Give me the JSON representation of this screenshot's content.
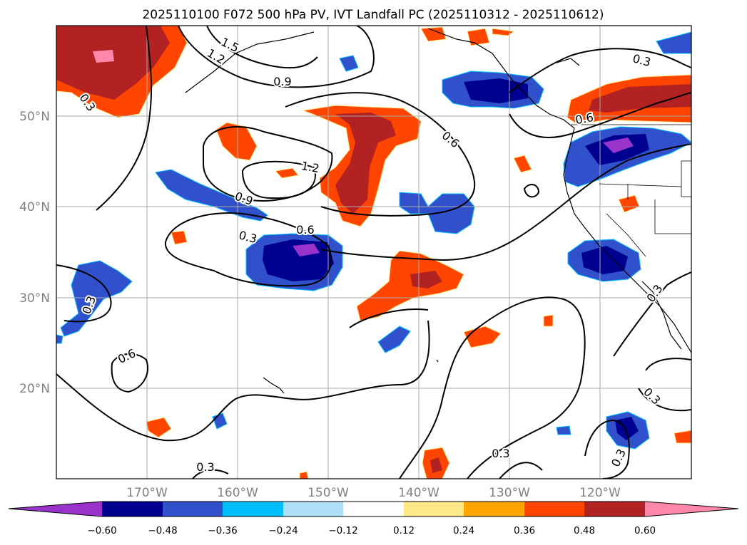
{
  "title": "2025110100 F072 500 hPa PV, IVT Landfall PC (2025110312 - 2025110612)",
  "map": {
    "lat_labels": [
      "50°N",
      "40°N",
      "30°N",
      "20°N"
    ],
    "lon_labels": [
      "170°W",
      "160°W",
      "150°W",
      "140°W",
      "130°W",
      "120°W"
    ],
    "contour_labels": [
      "1.5",
      "1.2",
      "0.9",
      "0.3",
      "1.2",
      "0.9",
      "0.6",
      "0.3",
      "0.6",
      "0.3",
      "0.6",
      "0.3",
      "0.3",
      "0.3",
      "0.3",
      "0.3",
      "0.6",
      "0.3"
    ]
  },
  "colorbar": {
    "colors": [
      "#9933cc",
      "#000090",
      "#3050cc",
      "#00bfff",
      "#b0e0f8",
      "#ffffff",
      "#ffe888",
      "#ffa500",
      "#ff4500",
      "#b22222",
      "#ff88aa",
      "#ff88aa"
    ],
    "tick_labels": [
      "−0.60",
      "−0.48",
      "−0.36",
      "−0.24",
      "−0.12",
      "0.12",
      "0.24",
      "0.36",
      "0.48",
      "0.60"
    ]
  }
}
